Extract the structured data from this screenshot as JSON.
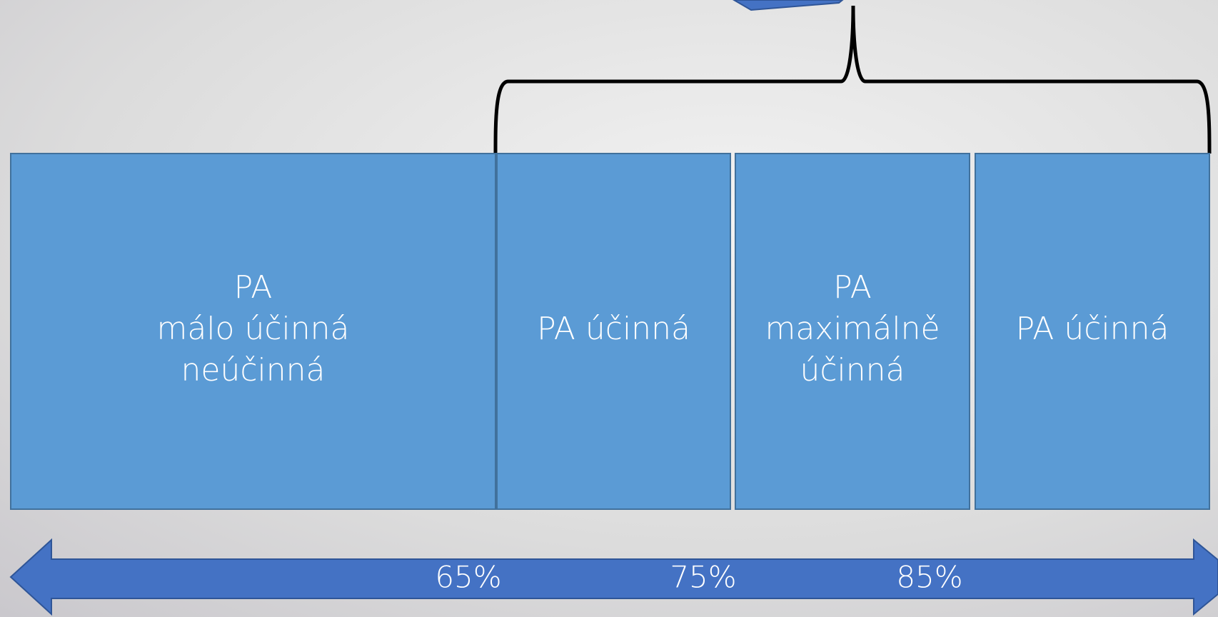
{
  "boxes": [
    {
      "lines": [
        "PA",
        "málo účinná",
        "neúčinná"
      ]
    },
    {
      "lines": [
        "PA účinná"
      ]
    },
    {
      "lines": [
        "PA",
        "maximálně",
        "účinná"
      ]
    },
    {
      "lines": [
        "PA účinná"
      ]
    }
  ],
  "scale": {
    "labels": [
      "65%",
      "75%",
      "85%"
    ]
  }
}
